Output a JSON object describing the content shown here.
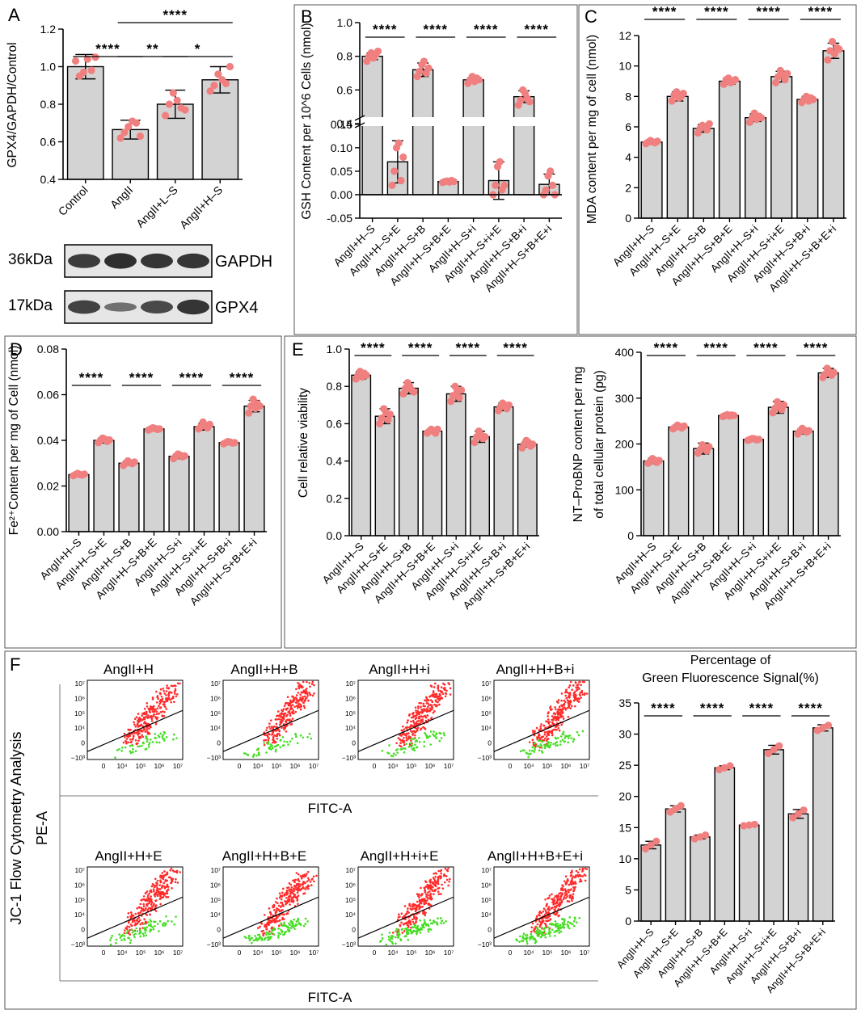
{
  "panel_letters": [
    "A",
    "B",
    "C",
    "D",
    "E",
    "F"
  ],
  "western_blot": {
    "rows": [
      {
        "mw": "36kDa",
        "protein": "GAPDH",
        "intensities": [
          0.85,
          0.95,
          0.9,
          0.9
        ]
      },
      {
        "mw": "17kDa",
        "protein": "GPX4",
        "intensities": [
          0.8,
          0.45,
          0.75,
          0.9
        ]
      }
    ]
  },
  "flow": {
    "side_title": "JC-1 Flow Cytometry Analysis",
    "ylabel": "PE-A",
    "xlabel": "FITC-A",
    "x_ticks": [
      "0",
      "10⁴",
      "10⁵",
      "10⁶",
      "10⁷"
    ],
    "y_ticks": [
      "10⁷",
      "10⁶",
      "10⁵",
      "10⁴",
      "0",
      "−10³"
    ],
    "panels": [
      {
        "title": "AngII+H",
        "green_fraction": 0.12
      },
      {
        "title": "AngII+H+B",
        "green_fraction": 0.13
      },
      {
        "title": "AngII+H+i",
        "green_fraction": 0.15
      },
      {
        "title": "AngII+H+B+i",
        "green_fraction": 0.17
      },
      {
        "title": "AngII+H+E",
        "green_fraction": 0.18
      },
      {
        "title": "AngII+H+B+E",
        "green_fraction": 0.25
      },
      {
        "title": "AngII+H+i+E",
        "green_fraction": 0.27
      },
      {
        "title": "AngII+H+B+E+i",
        "green_fraction": 0.31
      }
    ]
  },
  "chart_data": [
    {
      "id": "A",
      "type": "bar",
      "ylabel": "GPX4/GAPDH/Control",
      "categories": [
        "Control",
        "AngII",
        "AngII+L-S",
        "AngII+H-S"
      ],
      "values": [
        1.0,
        0.665,
        0.8,
        0.93
      ],
      "errors": [
        0.065,
        0.05,
        0.075,
        0.07
      ],
      "points": [
        [
          1.03,
          0.95,
          0.97,
          1.04,
          0.98,
          1.05
        ],
        [
          0.62,
          0.65,
          0.68,
          0.71,
          0.7,
          0.63
        ],
        [
          0.74,
          0.8,
          0.86,
          0.82,
          0.78,
          0.77
        ],
        [
          0.87,
          0.9,
          0.96,
          0.93,
          0.91,
          1.0
        ]
      ],
      "ylim": [
        0.4,
        1.2
      ],
      "yticks": [
        "0.4",
        "0.6",
        "0.8",
        "1.0",
        "1.2"
      ],
      "significance": [
        {
          "from": 0,
          "to": 1,
          "label": "****"
        },
        {
          "from": 1,
          "to": 2,
          "label": "**"
        },
        {
          "from": 2,
          "to": 3,
          "label": "*"
        },
        {
          "from": 1,
          "to": 3,
          "label": "****"
        }
      ]
    },
    {
      "id": "B",
      "type": "bar",
      "ylabel": "GSH Content per 10^6 Cells (nmol)",
      "categories": [
        "AngII+H-S",
        "AngII+H-S+E",
        "AngII+H-S+B",
        "AngII+H-S+B+E",
        "AngII+H-S+i",
        "AngII+H-S+i+E",
        "AngII+H-S+B+i",
        "AngII+H-S+B+E+i"
      ],
      "values": [
        0.8,
        0.07,
        0.72,
        0.028,
        0.66,
        0.03,
        0.56,
        0.022
      ],
      "errors": [
        0.02,
        0.045,
        0.04,
        0.003,
        0.015,
        0.04,
        0.035,
        0.022
      ],
      "points": [
        [
          0.77,
          0.8,
          0.82,
          0.79,
          0.81,
          0.83
        ],
        [
          0.02,
          0.05,
          0.1,
          0.11,
          0.03,
          0.08
        ],
        [
          0.68,
          0.71,
          0.75,
          0.77,
          0.7,
          0.73
        ],
        [
          0.026,
          0.028,
          0.029,
          0.027,
          0.03,
          0.028
        ],
        [
          0.64,
          0.66,
          0.68,
          0.65,
          0.67,
          0.66
        ],
        [
          0.0,
          0.02,
          0.06,
          0.07,
          0.01,
          0.02
        ],
        [
          0.51,
          0.54,
          0.6,
          0.58,
          0.55,
          0.53
        ],
        [
          0.0,
          0.01,
          0.04,
          0.05,
          0.02,
          0.0
        ]
      ],
      "axis_break": {
        "lower": [
          -0.05,
          0.16
        ],
        "upper": [
          0.4,
          1.0
        ]
      },
      "yticks_lower": [
        "-0.05",
        "0.00",
        "0.05",
        "0.10",
        "0.15"
      ],
      "yticks_upper": [
        "0.4",
        "0.6",
        "0.8",
        "1.0"
      ],
      "significance": [
        {
          "from": 0,
          "to": 1,
          "label": "****"
        },
        {
          "from": 2,
          "to": 3,
          "label": "****"
        },
        {
          "from": 4,
          "to": 5,
          "label": "****"
        },
        {
          "from": 6,
          "to": 7,
          "label": "****"
        }
      ]
    },
    {
      "id": "C",
      "type": "bar",
      "ylabel": "MDA content per mg of cell (nmol)",
      "categories": [
        "AngII+H-S",
        "AngII+H-S+E",
        "AngII+H-S+B",
        "AngII+H-S+B+E",
        "AngII+H-S+i",
        "AngII+H-S+i+E",
        "AngII+H-S+B+i",
        "AngII+H-S+B+E+i"
      ],
      "values": [
        5.0,
        8.0,
        5.9,
        9.0,
        6.6,
        9.3,
        7.8,
        11.0
      ],
      "errors": [
        0.1,
        0.3,
        0.25,
        0.2,
        0.25,
        0.35,
        0.2,
        0.5
      ],
      "points": [
        [
          4.9,
          5.0,
          5.1,
          5.0,
          4.95,
          5.05
        ],
        [
          7.7,
          8.1,
          8.3,
          7.9,
          8.0,
          8.2
        ],
        [
          5.6,
          5.9,
          6.1,
          6.0,
          5.8,
          6.2
        ],
        [
          8.8,
          9.1,
          9.2,
          8.9,
          9.0,
          9.1
        ],
        [
          6.3,
          6.6,
          6.9,
          6.5,
          6.7,
          6.6
        ],
        [
          8.9,
          9.3,
          9.7,
          9.4,
          9.1,
          9.5
        ],
        [
          7.6,
          7.8,
          8.0,
          7.7,
          7.9,
          7.8
        ],
        [
          10.4,
          11.0,
          11.6,
          10.8,
          11.2,
          11.1
        ]
      ],
      "ylim": [
        0,
        12
      ],
      "yticks": [
        "0",
        "2",
        "4",
        "6",
        "8",
        "10",
        "12"
      ],
      "significance": [
        {
          "from": 0,
          "to": 1,
          "label": "****"
        },
        {
          "from": 2,
          "to": 3,
          "label": "****"
        },
        {
          "from": 4,
          "to": 5,
          "label": "****"
        },
        {
          "from": 6,
          "to": 7,
          "label": "****"
        }
      ]
    },
    {
      "id": "D",
      "type": "bar",
      "ylabel": "Fe²⁺Content per mg of Cell (nmol)",
      "categories": [
        "AngII+H-S",
        "AngII+H-S+E",
        "AngII+H-S+B",
        "AngII+H-S+B+E",
        "AngII+H-S+i",
        "AngII+H-S+i+E",
        "AngII+H-S+B+i",
        "AngII+H-S+B+E+i"
      ],
      "values": [
        0.025,
        0.04,
        0.03,
        0.045,
        0.033,
        0.046,
        0.039,
        0.055
      ],
      "errors": [
        0.0008,
        0.0012,
        0.001,
        0.0008,
        0.001,
        0.0015,
        0.0008,
        0.0025
      ],
      "points": [
        [
          0.0245,
          0.025,
          0.0255,
          0.025,
          0.0248,
          0.0252
        ],
        [
          0.039,
          0.04,
          0.041,
          0.0405,
          0.0395,
          0.0402
        ],
        [
          0.029,
          0.03,
          0.031,
          0.0302,
          0.0298,
          0.0305
        ],
        [
          0.0445,
          0.045,
          0.0455,
          0.0452,
          0.0448,
          0.045
        ],
        [
          0.032,
          0.033,
          0.034,
          0.0335,
          0.0328,
          0.0332
        ],
        [
          0.045,
          0.046,
          0.048,
          0.0465,
          0.0455,
          0.047
        ],
        [
          0.0385,
          0.039,
          0.0395,
          0.0392,
          0.0388,
          0.039
        ],
        [
          0.052,
          0.055,
          0.058,
          0.054,
          0.056,
          0.055
        ]
      ],
      "ylim": [
        0,
        0.08
      ],
      "yticks": [
        "0.00",
        "0.02",
        "0.04",
        "0.06",
        "0.08"
      ],
      "significance": [
        {
          "from": 0,
          "to": 1,
          "label": "****"
        },
        {
          "from": 2,
          "to": 3,
          "label": "****"
        },
        {
          "from": 4,
          "to": 5,
          "label": "****"
        },
        {
          "from": 6,
          "to": 7,
          "label": "****"
        }
      ]
    },
    {
      "id": "E1",
      "type": "bar",
      "ylabel": "Cell relative viability",
      "categories": [
        "AngII+H-S",
        "AngII+H-S+E",
        "AngII+H-S+B",
        "AngII+H-S+B+E",
        "AngII+H-S+i",
        "AngII+H-S+i+E",
        "AngII+H-S+B+i",
        "AngII+H-S+B+E+i"
      ],
      "values": [
        0.86,
        0.64,
        0.79,
        0.56,
        0.76,
        0.53,
        0.69,
        0.49
      ],
      "errors": [
        0.02,
        0.04,
        0.03,
        0.01,
        0.04,
        0.03,
        0.02,
        0.015
      ],
      "points": [
        [
          0.84,
          0.86,
          0.88,
          0.85,
          0.87,
          0.86
        ],
        [
          0.6,
          0.63,
          0.68,
          0.66,
          0.62,
          0.65
        ],
        [
          0.76,
          0.79,
          0.82,
          0.8,
          0.78,
          0.77
        ],
        [
          0.55,
          0.56,
          0.57,
          0.56,
          0.55,
          0.57
        ],
        [
          0.72,
          0.75,
          0.8,
          0.77,
          0.74,
          0.78
        ],
        [
          0.5,
          0.53,
          0.56,
          0.54,
          0.52,
          0.53
        ],
        [
          0.67,
          0.69,
          0.71,
          0.7,
          0.68,
          0.7
        ],
        [
          0.47,
          0.49,
          0.51,
          0.5,
          0.48,
          0.49
        ]
      ],
      "ylim": [
        0,
        1.0
      ],
      "yticks": [
        "0.0",
        "0.2",
        "0.4",
        "0.6",
        "0.8",
        "1.0"
      ],
      "significance": [
        {
          "from": 0,
          "to": 1,
          "label": "****"
        },
        {
          "from": 2,
          "to": 3,
          "label": "****"
        },
        {
          "from": 4,
          "to": 5,
          "label": "****"
        },
        {
          "from": 6,
          "to": 7,
          "label": "****"
        }
      ]
    },
    {
      "id": "E2",
      "type": "bar",
      "ylabel_lines": [
        "NT-ProBNP content per mg",
        "of total cellular protein (pg)"
      ],
      "categories": [
        "AngII+H-S",
        "AngII+H-S+E",
        "AngII+H-S+B",
        "AngII+H-S+B+E",
        "AngII+H-S+i",
        "AngII+H-S+i+E",
        "AngII+H-S+B+i",
        "AngII+H-S+B+E+i"
      ],
      "values": [
        163,
        237,
        190,
        262,
        210,
        280,
        228,
        355
      ],
      "errors": [
        6,
        5,
        12,
        3,
        3,
        13,
        6,
        10
      ],
      "points": [
        [
          158,
          162,
          168,
          165,
          160,
          164
        ],
        [
          233,
          236,
          241,
          238,
          235,
          239
        ],
        [
          180,
          188,
          198,
          192,
          185,
          194
        ],
        [
          260,
          262,
          264,
          261,
          263,
          262
        ],
        [
          208,
          210,
          212,
          211,
          209,
          210
        ],
        [
          268,
          278,
          292,
          283,
          275,
          285
        ],
        [
          222,
          228,
          234,
          230,
          226,
          229
        ],
        [
          345,
          352,
          365,
          358,
          350,
          356
        ]
      ],
      "ylim": [
        0,
        400
      ],
      "yticks": [
        "0",
        "100",
        "200",
        "300",
        "400"
      ],
      "significance": [
        {
          "from": 0,
          "to": 1,
          "label": "****"
        },
        {
          "from": 2,
          "to": 3,
          "label": "****"
        },
        {
          "from": 4,
          "to": 5,
          "label": "****"
        },
        {
          "from": 6,
          "to": 7,
          "label": "****"
        }
      ]
    },
    {
      "id": "F",
      "type": "bar",
      "title_lines": [
        "Percentage of",
        "Green Fluorescence Signal(%)"
      ],
      "categories": [
        "AngII+H-S",
        "AngII+H-S+E",
        "AngII+H-S+B",
        "AngII+H-S+B+E",
        "AngII+H-S+i",
        "AngII+H-S+i+E",
        "AngII+H-S+B+i",
        "AngII+H-S+B+E+i"
      ],
      "values": [
        12.2,
        18.0,
        13.5,
        24.6,
        15.4,
        27.5,
        17.2,
        31.0
      ],
      "errors": [
        0.6,
        0.5,
        0.3,
        0.3,
        0.15,
        0.7,
        0.7,
        0.5
      ],
      "points": [
        [
          11.6,
          12.2,
          12.8
        ],
        [
          17.5,
          18.0,
          18.5
        ],
        [
          13.2,
          13.5,
          13.8
        ],
        [
          24.3,
          24.6,
          24.9
        ],
        [
          15.3,
          15.4,
          15.5
        ],
        [
          26.9,
          27.5,
          28.1
        ],
        [
          16.6,
          17.2,
          17.8
        ],
        [
          30.6,
          31.0,
          31.4
        ]
      ],
      "ylim": [
        0,
        35
      ],
      "yticks": [
        "0",
        "5",
        "10",
        "15",
        "20",
        "25",
        "30",
        "35"
      ],
      "significance": [
        {
          "from": 0,
          "to": 1,
          "label": "****"
        },
        {
          "from": 2,
          "to": 3,
          "label": "****"
        },
        {
          "from": 4,
          "to": 5,
          "label": "****"
        },
        {
          "from": 6,
          "to": 7,
          "label": "****"
        }
      ]
    }
  ]
}
